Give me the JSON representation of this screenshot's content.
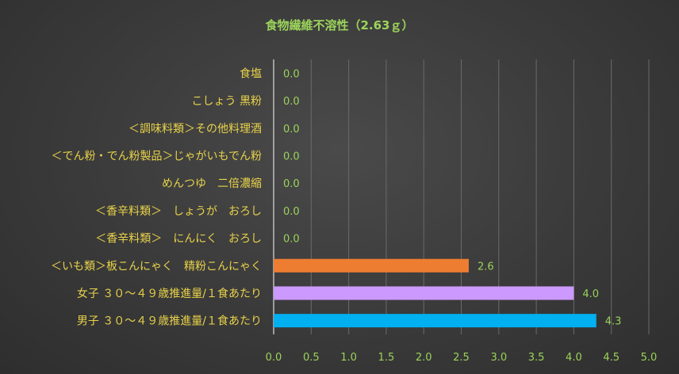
{
  "chart_data": {
    "type": "bar",
    "orientation": "horizontal",
    "title": "食物繊維不溶性（2.63ｇ）",
    "categories": [
      "食塩",
      "こしょう 黒粉",
      "＜調味料類＞その他料理酒",
      "＜でん粉・でん粉製品＞じゃがいもでん粉",
      "めんつゆ　二倍濃縮",
      "＜香辛料類＞　しょうが　おろし",
      "＜香辛料類＞　にんにく　おろし",
      "＜いも類＞板こんにゃく　精粉こんにゃく",
      "女子 ３０～４９歳推進量/１食あたり",
      "男子 ３０～４９歳推進量/１食あたり"
    ],
    "values": [
      0.0,
      0.0,
      0.0,
      0.0,
      0.0,
      0.0,
      0.0,
      2.6,
      4.0,
      4.3
    ],
    "value_labels": [
      "0.0",
      "0.0",
      "0.0",
      "0.0",
      "0.0",
      "0.0",
      "0.0",
      "2.6",
      "4.0",
      "4.3"
    ],
    "bar_colors": [
      "#ed7d31",
      "#ed7d31",
      "#ed7d31",
      "#ed7d31",
      "#ed7d31",
      "#ed7d31",
      "#ed7d31",
      "#ed7d31",
      "#cc99ff",
      "#00b0f0"
    ],
    "xlim": [
      0,
      5.0
    ],
    "xticks": [
      "0.0",
      "0.5",
      "1.0",
      "1.5",
      "2.0",
      "2.5",
      "3.0",
      "3.5",
      "4.0",
      "4.5",
      "5.0"
    ],
    "grid": "vertical",
    "legend": "none"
  }
}
